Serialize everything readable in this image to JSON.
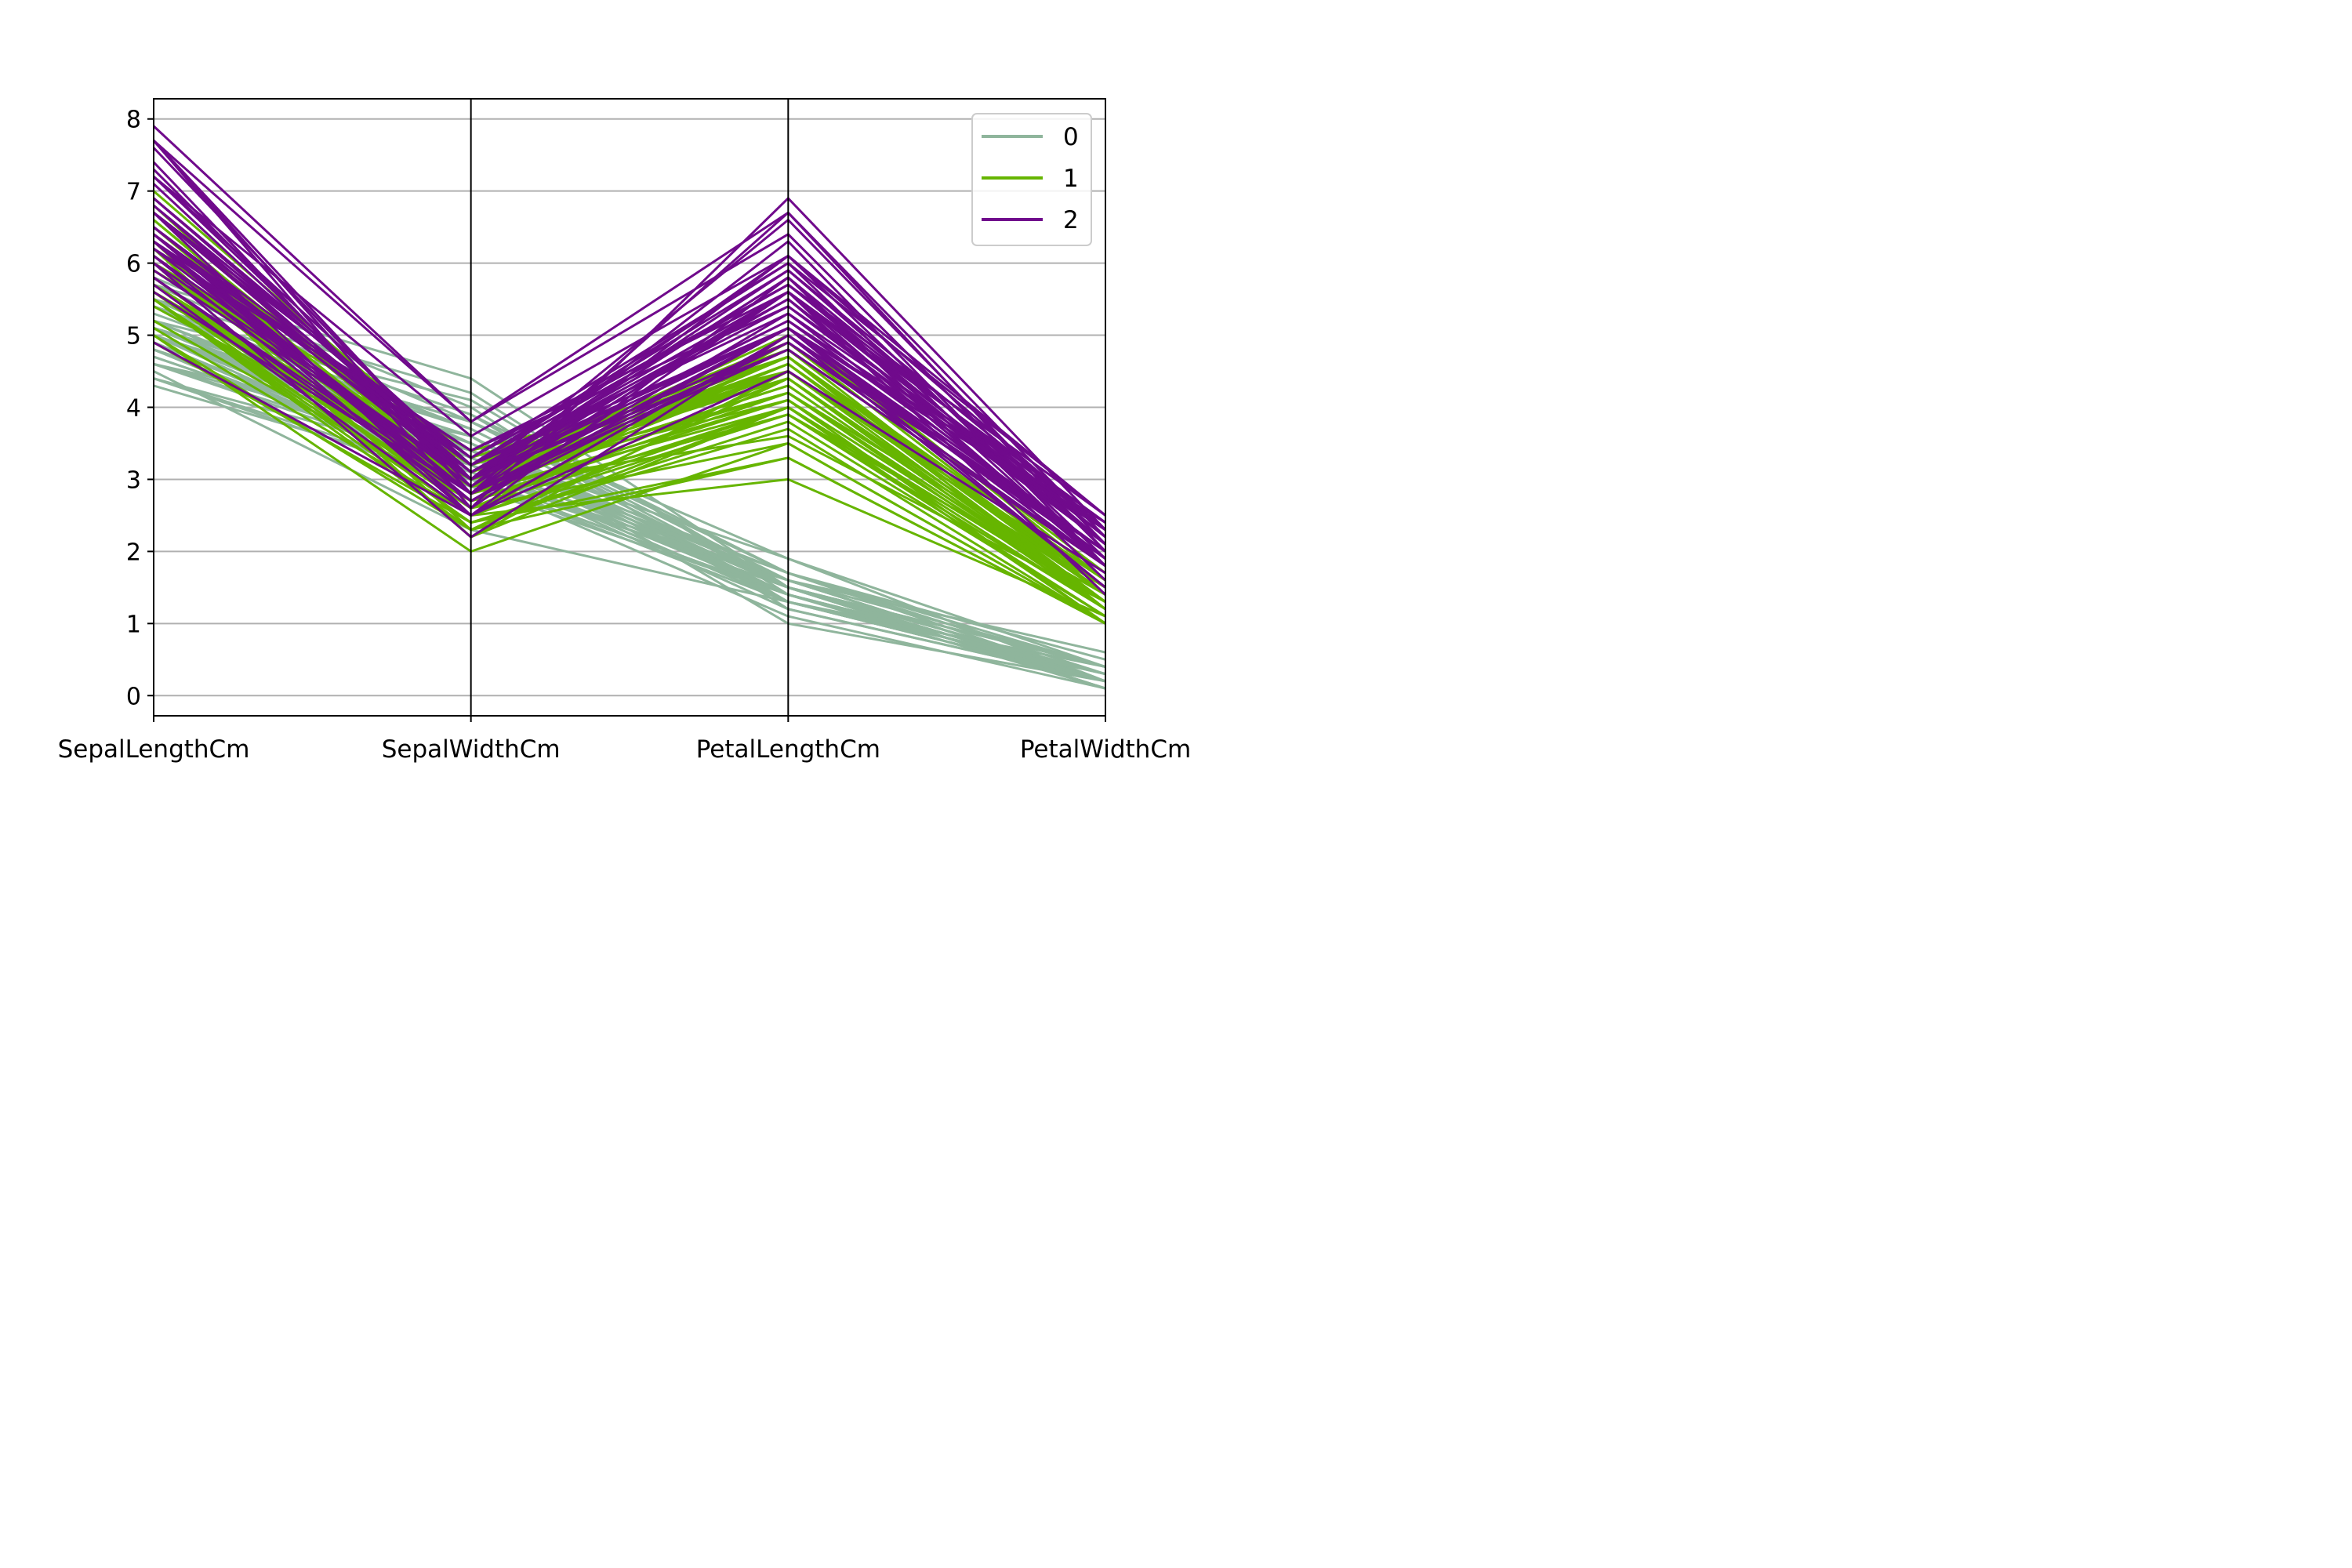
{
  "chart_data": {
    "type": "line",
    "subtype": "parallel_coordinates",
    "title": "",
    "xlabel": "",
    "ylabel": "",
    "categories": [
      "SepalLengthCm",
      "SepalWidthCm",
      "PetalLengthCm",
      "PetalWidthCm"
    ],
    "ylim": [
      -0.28,
      8.28
    ],
    "yticks": [
      "0",
      "1",
      "2",
      "3",
      "4",
      "5",
      "6",
      "7",
      "8"
    ],
    "grid": true,
    "legend": {
      "position": "top-right",
      "entries": [
        "0",
        "1",
        "2"
      ]
    },
    "series": [
      {
        "name": "0",
        "color": "#8fb59c",
        "lines": [
          [
            5.1,
            3.5,
            1.4,
            0.2
          ],
          [
            4.9,
            3.0,
            1.4,
            0.2
          ],
          [
            4.7,
            3.2,
            1.3,
            0.2
          ],
          [
            4.6,
            3.1,
            1.5,
            0.2
          ],
          [
            5.0,
            3.6,
            1.4,
            0.2
          ],
          [
            5.4,
            3.9,
            1.7,
            0.4
          ],
          [
            4.6,
            3.4,
            1.4,
            0.3
          ],
          [
            5.0,
            3.4,
            1.5,
            0.2
          ],
          [
            4.4,
            2.9,
            1.4,
            0.2
          ],
          [
            4.9,
            3.1,
            1.5,
            0.1
          ],
          [
            5.4,
            3.7,
            1.5,
            0.2
          ],
          [
            4.8,
            3.4,
            1.6,
            0.2
          ],
          [
            4.8,
            3.0,
            1.4,
            0.1
          ],
          [
            4.3,
            3.0,
            1.1,
            0.1
          ],
          [
            5.8,
            4.0,
            1.2,
            0.2
          ],
          [
            5.7,
            4.4,
            1.5,
            0.4
          ],
          [
            5.4,
            3.9,
            1.3,
            0.4
          ],
          [
            5.1,
            3.5,
            1.4,
            0.3
          ],
          [
            5.7,
            3.8,
            1.7,
            0.3
          ],
          [
            5.1,
            3.8,
            1.5,
            0.3
          ],
          [
            5.4,
            3.4,
            1.7,
            0.2
          ],
          [
            5.1,
            3.7,
            1.5,
            0.4
          ],
          [
            4.6,
            3.6,
            1.0,
            0.2
          ],
          [
            5.1,
            3.3,
            1.7,
            0.5
          ],
          [
            4.8,
            3.4,
            1.9,
            0.2
          ],
          [
            5.0,
            3.0,
            1.6,
            0.2
          ],
          [
            5.0,
            3.4,
            1.6,
            0.4
          ],
          [
            5.2,
            3.5,
            1.5,
            0.2
          ],
          [
            5.2,
            3.4,
            1.4,
            0.2
          ],
          [
            4.7,
            3.2,
            1.6,
            0.2
          ],
          [
            4.8,
            3.1,
            1.6,
            0.2
          ],
          [
            5.4,
            3.4,
            1.5,
            0.4
          ],
          [
            5.2,
            4.1,
            1.5,
            0.1
          ],
          [
            5.5,
            4.2,
            1.4,
            0.2
          ],
          [
            4.9,
            3.1,
            1.5,
            0.1
          ],
          [
            5.0,
            3.2,
            1.2,
            0.2
          ],
          [
            5.5,
            3.5,
            1.3,
            0.2
          ],
          [
            4.9,
            3.1,
            1.5,
            0.1
          ],
          [
            4.4,
            3.0,
            1.3,
            0.2
          ],
          [
            5.1,
            3.4,
            1.5,
            0.2
          ],
          [
            5.0,
            3.5,
            1.3,
            0.3
          ],
          [
            4.5,
            2.3,
            1.3,
            0.3
          ],
          [
            4.4,
            3.2,
            1.3,
            0.2
          ],
          [
            5.0,
            3.5,
            1.6,
            0.6
          ],
          [
            5.1,
            3.8,
            1.9,
            0.4
          ],
          [
            4.8,
            3.0,
            1.4,
            0.3
          ],
          [
            5.1,
            3.8,
            1.6,
            0.2
          ],
          [
            4.6,
            3.2,
            1.4,
            0.2
          ],
          [
            5.3,
            3.7,
            1.5,
            0.2
          ],
          [
            5.0,
            3.3,
            1.4,
            0.2
          ]
        ]
      },
      {
        "name": "1",
        "color": "#66b500",
        "lines": [
          [
            7.0,
            3.2,
            4.7,
            1.4
          ],
          [
            6.4,
            3.2,
            4.5,
            1.5
          ],
          [
            6.9,
            3.1,
            4.9,
            1.5
          ],
          [
            5.5,
            2.3,
            4.0,
            1.3
          ],
          [
            6.5,
            2.8,
            4.6,
            1.5
          ],
          [
            5.7,
            2.8,
            4.5,
            1.3
          ],
          [
            6.3,
            3.3,
            4.7,
            1.6
          ],
          [
            4.9,
            2.4,
            3.3,
            1.0
          ],
          [
            6.6,
            2.9,
            4.6,
            1.3
          ],
          [
            5.2,
            2.7,
            3.9,
            1.4
          ],
          [
            5.0,
            2.0,
            3.5,
            1.0
          ],
          [
            5.9,
            3.0,
            4.2,
            1.5
          ],
          [
            6.0,
            2.2,
            4.0,
            1.0
          ],
          [
            6.1,
            2.9,
            4.7,
            1.4
          ],
          [
            5.6,
            2.9,
            3.6,
            1.3
          ],
          [
            6.7,
            3.1,
            4.4,
            1.4
          ],
          [
            5.6,
            3.0,
            4.5,
            1.5
          ],
          [
            5.8,
            2.7,
            4.1,
            1.0
          ],
          [
            6.2,
            2.2,
            4.5,
            1.5
          ],
          [
            5.6,
            2.5,
            3.9,
            1.1
          ],
          [
            5.9,
            3.2,
            4.8,
            1.8
          ],
          [
            6.1,
            2.8,
            4.0,
            1.3
          ],
          [
            6.3,
            2.5,
            4.9,
            1.5
          ],
          [
            6.1,
            2.8,
            4.7,
            1.2
          ],
          [
            6.4,
            2.9,
            4.3,
            1.3
          ],
          [
            6.6,
            3.0,
            4.4,
            1.4
          ],
          [
            6.8,
            2.8,
            4.8,
            1.4
          ],
          [
            6.7,
            3.0,
            5.0,
            1.7
          ],
          [
            6.0,
            2.9,
            4.5,
            1.5
          ],
          [
            5.7,
            2.6,
            3.5,
            1.0
          ],
          [
            5.5,
            2.4,
            3.8,
            1.1
          ],
          [
            5.5,
            2.4,
            3.7,
            1.0
          ],
          [
            5.8,
            2.7,
            3.9,
            1.2
          ],
          [
            6.0,
            2.7,
            5.1,
            1.6
          ],
          [
            5.4,
            3.0,
            4.5,
            1.5
          ],
          [
            6.0,
            3.4,
            4.5,
            1.6
          ],
          [
            6.7,
            3.1,
            4.7,
            1.5
          ],
          [
            6.3,
            2.3,
            4.4,
            1.3
          ],
          [
            5.6,
            3.0,
            4.1,
            1.3
          ],
          [
            5.5,
            2.5,
            4.0,
            1.3
          ],
          [
            5.5,
            2.6,
            4.4,
            1.2
          ],
          [
            6.1,
            3.0,
            4.6,
            1.4
          ],
          [
            5.8,
            2.6,
            4.0,
            1.2
          ],
          [
            5.0,
            2.3,
            3.3,
            1.0
          ],
          [
            5.6,
            2.7,
            4.2,
            1.3
          ],
          [
            5.7,
            3.0,
            4.2,
            1.2
          ],
          [
            5.7,
            2.9,
            4.2,
            1.3
          ],
          [
            6.2,
            2.9,
            4.3,
            1.3
          ],
          [
            5.1,
            2.5,
            3.0,
            1.1
          ],
          [
            5.7,
            2.8,
            4.1,
            1.3
          ]
        ]
      },
      {
        "name": "2",
        "color": "#700a8c",
        "lines": [
          [
            6.3,
            3.3,
            6.0,
            2.5
          ],
          [
            5.8,
            2.7,
            5.1,
            1.9
          ],
          [
            7.1,
            3.0,
            5.9,
            2.1
          ],
          [
            6.3,
            2.9,
            5.6,
            1.8
          ],
          [
            6.5,
            3.0,
            5.8,
            2.2
          ],
          [
            7.6,
            3.0,
            6.6,
            2.1
          ],
          [
            4.9,
            2.5,
            4.5,
            1.7
          ],
          [
            7.3,
            2.9,
            6.3,
            1.8
          ],
          [
            6.7,
            2.5,
            5.8,
            1.8
          ],
          [
            7.2,
            3.6,
            6.1,
            2.5
          ],
          [
            6.5,
            3.2,
            5.1,
            2.0
          ],
          [
            6.4,
            2.7,
            5.3,
            1.9
          ],
          [
            6.8,
            3.0,
            5.5,
            2.1
          ],
          [
            5.7,
            2.5,
            5.0,
            2.0
          ],
          [
            5.8,
            2.8,
            5.1,
            2.4
          ],
          [
            6.4,
            3.2,
            5.3,
            2.3
          ],
          [
            6.5,
            3.0,
            5.5,
            1.8
          ],
          [
            7.7,
            3.8,
            6.7,
            2.2
          ],
          [
            7.7,
            2.6,
            6.9,
            2.3
          ],
          [
            6.0,
            2.2,
            5.0,
            1.5
          ],
          [
            6.9,
            3.2,
            5.7,
            2.3
          ],
          [
            5.6,
            2.8,
            4.9,
            2.0
          ],
          [
            7.7,
            2.8,
            6.7,
            2.0
          ],
          [
            6.3,
            2.7,
            4.9,
            1.8
          ],
          [
            6.7,
            3.3,
            5.7,
            2.1
          ],
          [
            7.2,
            3.2,
            6.0,
            1.8
          ],
          [
            6.2,
            2.8,
            4.8,
            1.8
          ],
          [
            6.1,
            3.0,
            4.9,
            1.8
          ],
          [
            6.4,
            2.8,
            5.6,
            2.1
          ],
          [
            7.2,
            3.0,
            5.8,
            1.6
          ],
          [
            7.4,
            2.8,
            6.1,
            1.9
          ],
          [
            7.9,
            3.8,
            6.4,
            2.0
          ],
          [
            6.4,
            2.8,
            5.6,
            2.2
          ],
          [
            6.3,
            2.8,
            5.1,
            1.5
          ],
          [
            6.1,
            2.6,
            5.6,
            1.4
          ],
          [
            7.7,
            3.0,
            6.1,
            2.3
          ],
          [
            6.3,
            3.4,
            5.6,
            2.4
          ],
          [
            6.4,
            3.1,
            5.5,
            1.8
          ],
          [
            6.0,
            3.0,
            4.8,
            1.8
          ],
          [
            6.9,
            3.1,
            5.4,
            2.1
          ],
          [
            6.7,
            3.1,
            5.6,
            2.4
          ],
          [
            6.9,
            3.1,
            5.1,
            2.3
          ],
          [
            5.8,
            2.7,
            5.1,
            1.9
          ],
          [
            6.8,
            3.2,
            5.9,
            2.3
          ],
          [
            6.7,
            3.3,
            5.7,
            2.5
          ],
          [
            6.7,
            3.0,
            5.2,
            2.3
          ],
          [
            6.3,
            2.5,
            5.0,
            1.9
          ],
          [
            6.5,
            3.0,
            5.2,
            2.0
          ],
          [
            6.2,
            3.4,
            5.4,
            2.3
          ],
          [
            5.9,
            3.0,
            5.1,
            1.8
          ]
        ]
      }
    ]
  }
}
